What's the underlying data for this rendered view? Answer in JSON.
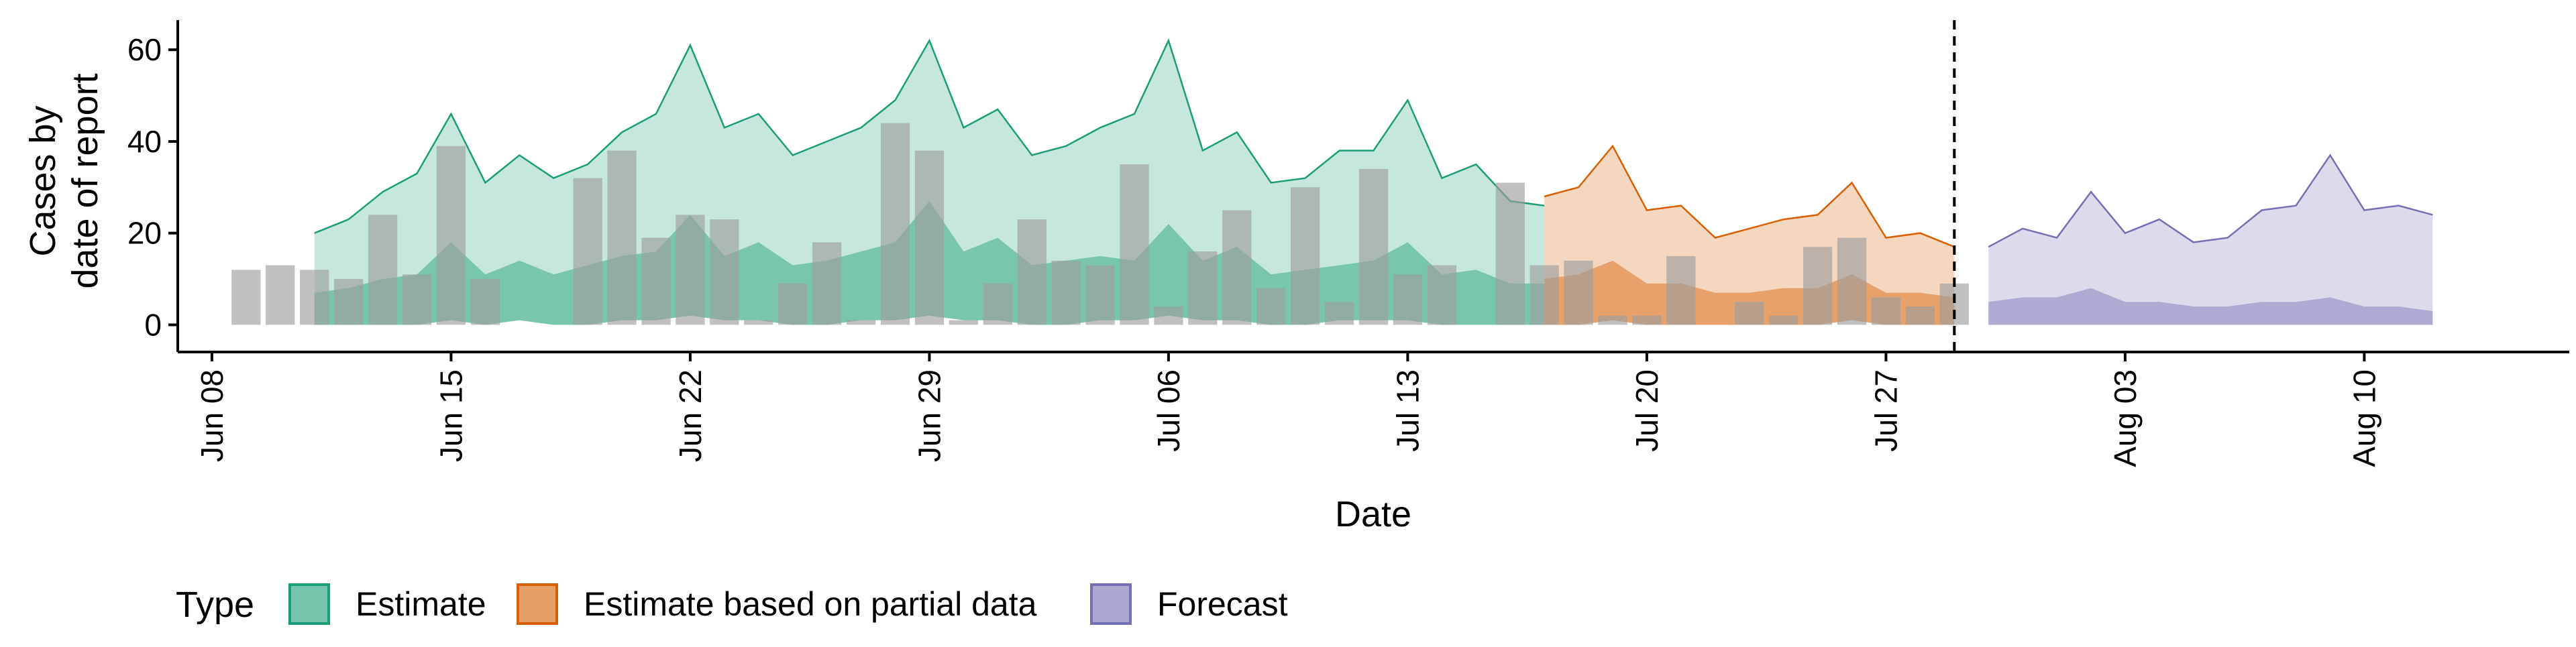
{
  "chart_data": {
    "type": "area",
    "xlabel": "Date",
    "ylabel": [
      "Cases by",
      "date of report"
    ],
    "x_domain": [
      "2020-06-07",
      "2020-08-16"
    ],
    "ylim": [
      -3,
      65
    ],
    "y_ticks": [
      0,
      20,
      40,
      60
    ],
    "x_ticks": [
      {
        "date": "2020-06-08",
        "label": "Jun 08"
      },
      {
        "date": "2020-06-15",
        "label": "Jun 15"
      },
      {
        "date": "2020-06-22",
        "label": "Jun 22"
      },
      {
        "date": "2020-06-29",
        "label": "Jun 29"
      },
      {
        "date": "2020-07-06",
        "label": "Jul 06"
      },
      {
        "date": "2020-07-13",
        "label": "Jul 13"
      },
      {
        "date": "2020-07-20",
        "label": "Jul 20"
      },
      {
        "date": "2020-07-27",
        "label": "Jul 27"
      },
      {
        "date": "2020-08-03",
        "label": "Aug 03"
      },
      {
        "date": "2020-08-10",
        "label": "Aug 10"
      }
    ],
    "grid": false,
    "legend_position": "bottom",
    "legend_title": "Type",
    "vline_date": "2020-07-29",
    "observed_cases": {
      "color": "#9e9e9e",
      "start_date": "2020-06-09",
      "values": [
        12,
        13,
        12,
        10,
        24,
        11,
        39,
        10,
        0,
        0,
        32,
        38,
        19,
        24,
        23,
        1,
        9,
        18,
        1,
        44,
        38,
        1,
        9,
        23,
        14,
        13,
        35,
        4,
        16,
        25,
        8,
        30,
        5,
        34,
        11,
        13,
        0,
        31,
        13,
        14,
        2,
        2,
        15,
        0,
        5,
        2,
        17,
        19,
        6,
        4,
        9
      ]
    },
    "series": [
      {
        "name": "Estimate",
        "color": "#1b9e77",
        "start_date": "2020-06-11",
        "upper": [
          20,
          23,
          29,
          33,
          46,
          31,
          37,
          32,
          35,
          42,
          46,
          61,
          43,
          46,
          37,
          40,
          43,
          49,
          62,
          43,
          47,
          37,
          39,
          43,
          46,
          62,
          38,
          42,
          31,
          32,
          38,
          38,
          49,
          32,
          35,
          27,
          26
        ],
        "mid": [
          7,
          8,
          10,
          11,
          18,
          11,
          14,
          11,
          13,
          15,
          16,
          24,
          15,
          18,
          13,
          14,
          16,
          18,
          27,
          16,
          19,
          13,
          14,
          15,
          14,
          22,
          14,
          17,
          11,
          12,
          13,
          14,
          18,
          11,
          12,
          9,
          9
        ],
        "lower": [
          0,
          0,
          0,
          0,
          1,
          0,
          1,
          0,
          0,
          1,
          1,
          2,
          1,
          1,
          0,
          0,
          1,
          1,
          2,
          1,
          1,
          0,
          0,
          1,
          1,
          2,
          1,
          1,
          0,
          0,
          1,
          1,
          1,
          0,
          0,
          0,
          0
        ]
      },
      {
        "name": "Estimate based on partial data",
        "color": "#d95f02",
        "start_date": "2020-07-17",
        "upper": [
          28,
          30,
          39,
          25,
          26,
          19,
          21,
          23,
          24,
          31,
          19,
          20,
          17
        ],
        "mid": [
          10,
          11,
          14,
          9,
          9,
          7,
          7,
          8,
          8,
          11,
          7,
          7,
          6
        ],
        "lower": [
          0,
          0,
          1,
          0,
          0,
          0,
          0,
          0,
          0,
          1,
          0,
          0,
          0
        ]
      },
      {
        "name": "Forecast",
        "color": "#7570b3",
        "start_date": "2020-07-30",
        "upper": [
          17,
          21,
          19,
          29,
          20,
          23,
          18,
          19,
          25,
          26,
          37,
          25,
          26,
          24
        ],
        "mid": [
          5,
          6,
          6,
          8,
          5,
          5,
          4,
          4,
          5,
          5,
          6,
          4,
          4,
          3
        ],
        "lower": [
          0,
          0,
          0,
          0,
          0,
          0,
          0,
          0,
          0,
          0,
          0,
          0,
          0,
          0
        ]
      }
    ]
  }
}
